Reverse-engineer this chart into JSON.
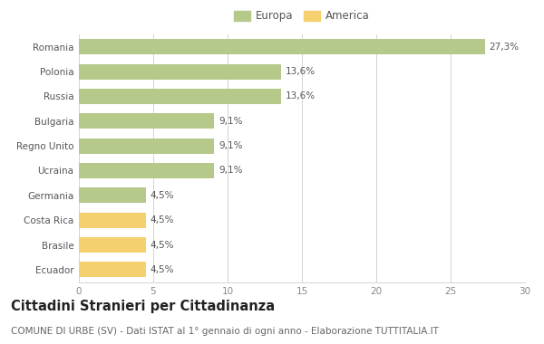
{
  "categories": [
    "Romania",
    "Polonia",
    "Russia",
    "Bulgaria",
    "Regno Unito",
    "Ucraina",
    "Germania",
    "Costa Rica",
    "Brasile",
    "Ecuador"
  ],
  "values": [
    27.3,
    13.6,
    13.6,
    9.1,
    9.1,
    9.1,
    4.5,
    4.5,
    4.5,
    4.5
  ],
  "labels": [
    "27,3%",
    "13,6%",
    "13,6%",
    "9,1%",
    "9,1%",
    "9,1%",
    "4,5%",
    "4,5%",
    "4,5%",
    "4,5%"
  ],
  "colors": [
    "#b5c98a",
    "#b5c98a",
    "#b5c98a",
    "#b5c98a",
    "#b5c98a",
    "#b5c98a",
    "#b5c98a",
    "#f5d06e",
    "#f5d06e",
    "#f5d06e"
  ],
  "europa_color": "#b5c98a",
  "america_color": "#f5d06e",
  "title": "Cittadini Stranieri per Cittadinanza",
  "subtitle": "COMUNE DI URBE (SV) - Dati ISTAT al 1° gennaio di ogni anno - Elaborazione TUTTITALIA.IT",
  "xlim": [
    0,
    30
  ],
  "xticks": [
    0,
    5,
    10,
    15,
    20,
    25,
    30
  ],
  "background_color": "#ffffff",
  "bar_height": 0.62,
  "title_fontsize": 10.5,
  "subtitle_fontsize": 7.5,
  "label_fontsize": 7.5,
  "tick_fontsize": 7.5,
  "legend_fontsize": 8.5
}
